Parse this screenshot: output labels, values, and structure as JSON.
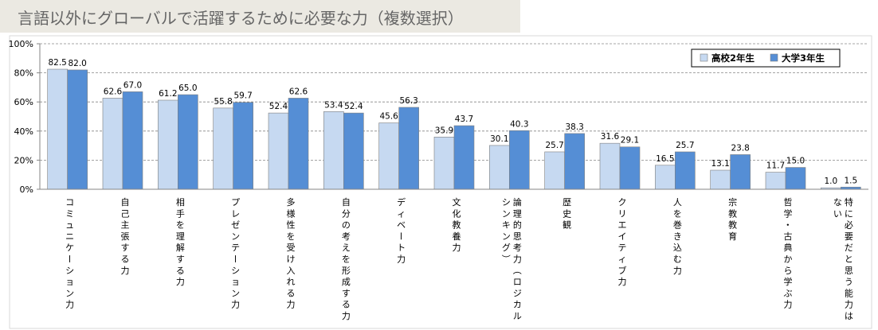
{
  "title": "言語以外にグローバルで活躍するために必要な力（複数選択）",
  "chart_data": {
    "type": "bar",
    "title": "言語以外にグローバルで活躍するために必要な力（複数選択）",
    "xlabel": "",
    "ylabel": "",
    "ylim": [
      0,
      100
    ],
    "yticks": [
      "0%",
      "20%",
      "40%",
      "60%",
      "80%",
      "100%"
    ],
    "grid": true,
    "legend_position": "top-right",
    "categories": [
      "コミュニケーション力",
      "自己主張する力",
      "相手を理解する力",
      "プレゼンテーション力",
      "多様性を受け入れる力",
      "自分の考えを形成する力",
      "ディベート力",
      "文化教養力",
      "論理的思考力（ロジカルシンキング）",
      "歴史観",
      "クリエイティブ力",
      "人を巻き込む力",
      "宗教教育",
      "哲学・古典から学ぶ力",
      "特に必要だと思う能力はない"
    ],
    "series": [
      {
        "name": "高校2年生",
        "color": "#c6d9f1",
        "values": [
          82.5,
          62.6,
          61.2,
          55.8,
          52.4,
          53.4,
          45.6,
          35.9,
          30.1,
          25.7,
          31.6,
          16.5,
          13.1,
          11.7,
          1.0
        ],
        "labels": [
          "82.5",
          "62.6",
          "61.2",
          "55.8",
          "52.4",
          "53.4",
          "45.6",
          "35.9",
          "30.1",
          "25.7",
          "31.6",
          "16.5",
          "13.1",
          "11.7",
          "1.0"
        ]
      },
      {
        "name": "大学3年生",
        "color": "#558ed5",
        "values": [
          82.0,
          67.0,
          65.0,
          59.7,
          62.6,
          52.4,
          56.3,
          43.7,
          40.3,
          38.3,
          29.1,
          25.7,
          23.8,
          15.0,
          1.5
        ],
        "labels": [
          "82.0",
          "67.0",
          "65.0",
          "59.7",
          "62.6",
          "52.4",
          "56.3",
          "43.7",
          "40.3",
          "38.3",
          "29.1",
          "25.7",
          "23.8",
          "15.0",
          "1.5"
        ]
      }
    ]
  }
}
